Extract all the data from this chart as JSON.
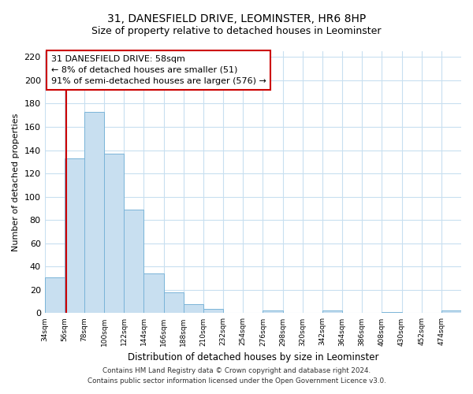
{
  "title": "31, DANESFIELD DRIVE, LEOMINSTER, HR6 8HP",
  "subtitle": "Size of property relative to detached houses in Leominster",
  "xlabel": "Distribution of detached houses by size in Leominster",
  "ylabel": "Number of detached properties",
  "bar_edges": [
    34,
    56,
    78,
    100,
    122,
    144,
    166,
    188,
    210,
    232,
    254,
    276,
    298,
    320,
    342,
    364,
    386,
    408,
    430,
    452,
    474
  ],
  "bar_heights": [
    31,
    133,
    173,
    137,
    89,
    34,
    18,
    8,
    4,
    0,
    0,
    2,
    0,
    0,
    2,
    0,
    0,
    1,
    0,
    0,
    2
  ],
  "bar_color": "#c8dff0",
  "bar_edge_color": "#7ab4d8",
  "vline_x": 58,
  "vline_color": "#cc0000",
  "ylim": [
    0,
    225
  ],
  "yticks": [
    0,
    20,
    40,
    60,
    80,
    100,
    120,
    140,
    160,
    180,
    200,
    220
  ],
  "xtick_labels": [
    "34sqm",
    "56sqm",
    "78sqm",
    "100sqm",
    "122sqm",
    "144sqm",
    "166sqm",
    "188sqm",
    "210sqm",
    "232sqm",
    "254sqm",
    "276sqm",
    "298sqm",
    "320sqm",
    "342sqm",
    "364sqm",
    "386sqm",
    "408sqm",
    "430sqm",
    "452sqm",
    "474sqm"
  ],
  "annotation_title": "31 DANESFIELD DRIVE: 58sqm",
  "annotation_line1": "← 8% of detached houses are smaller (51)",
  "annotation_line2": "91% of semi-detached houses are larger (576) →",
  "footer_line1": "Contains HM Land Registry data © Crown copyright and database right 2024.",
  "footer_line2": "Contains public sector information licensed under the Open Government Licence v3.0.",
  "background_color": "#ffffff",
  "grid_color": "#c8dff0",
  "title_fontsize": 10,
  "subtitle_fontsize": 9
}
